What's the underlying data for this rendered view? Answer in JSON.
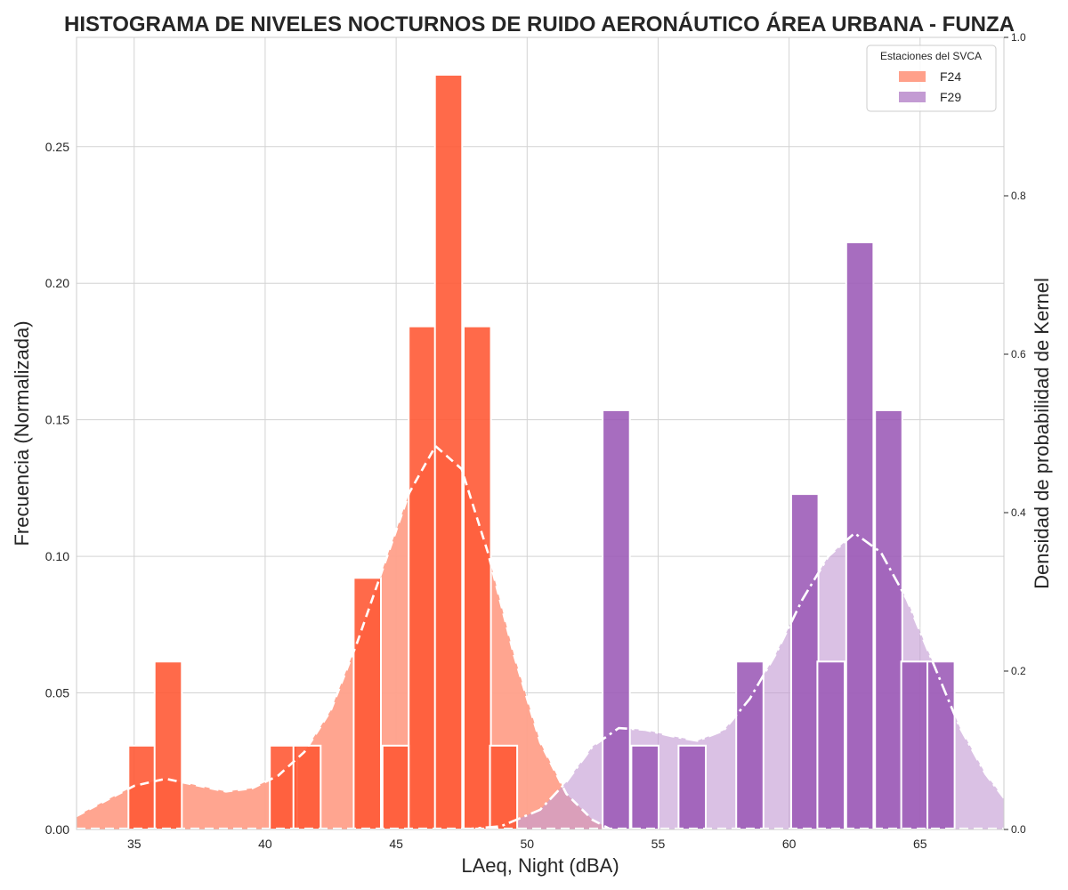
{
  "chart_data": {
    "type": "bar",
    "title": "HISTOGRAMA DE NIVELES NOCTURNOS DE RUIDO AERONÁUTICO ÁREA URBANA - FUNZA",
    "xlabel": "LAeq, Night (dBA)",
    "ylabel": "Frecuencia (Normalizada)",
    "ylabel_right": "Densidad de probabilidad de Kernel",
    "xlim": [
      32.8,
      68.2
    ],
    "ylim": [
      0,
      0.29
    ],
    "ylim_right": [
      0,
      1.0
    ],
    "x_ticks": [
      35,
      40,
      45,
      50,
      55,
      60,
      65
    ],
    "y_ticks": [
      0.0,
      0.05,
      0.1,
      0.15,
      0.2,
      0.25
    ],
    "y_tick_labels": [
      "0.00",
      "0.05",
      "0.10",
      "0.15",
      "0.20",
      "0.25"
    ],
    "y_ticks_right": [
      0.0,
      0.2,
      0.4,
      0.6,
      0.8,
      1.0
    ],
    "y_tick_labels_right": [
      "0.0",
      "0.2",
      "0.4",
      "0.6",
      "0.8",
      "1.0"
    ],
    "grid": true,
    "legend": {
      "title": "Estaciones del SVCA",
      "position": "top-right",
      "entries": [
        "F24",
        "F29"
      ]
    },
    "bin_width": 1.04,
    "series": [
      {
        "name": "F24",
        "color": "#ff5a36",
        "kde_color": "#ffa08a",
        "kde_line_style": "dashed",
        "bins": [
          {
            "x": 35.3,
            "y": 0.0307
          },
          {
            "x": 36.3,
            "y": 0.0615
          },
          {
            "x": 40.7,
            "y": 0.0307
          },
          {
            "x": 41.6,
            "y": 0.0307
          },
          {
            "x": 43.9,
            "y": 0.0921
          },
          {
            "x": 45.0,
            "y": 0.0307
          },
          {
            "x": 46.0,
            "y": 0.1842
          },
          {
            "x": 47.0,
            "y": 0.2763
          },
          {
            "x": 48.1,
            "y": 0.1842
          },
          {
            "x": 49.1,
            "y": 0.0307
          }
        ],
        "kde": [
          {
            "x": 32.8,
            "y": 0.017
          },
          {
            "x": 34.0,
            "y": 0.038
          },
          {
            "x": 35.0,
            "y": 0.055
          },
          {
            "x": 36.2,
            "y": 0.064
          },
          {
            "x": 37.5,
            "y": 0.055
          },
          {
            "x": 38.5,
            "y": 0.048
          },
          {
            "x": 39.5,
            "y": 0.052
          },
          {
            "x": 40.5,
            "y": 0.068
          },
          {
            "x": 41.5,
            "y": 0.098
          },
          {
            "x": 42.5,
            "y": 0.15
          },
          {
            "x": 43.5,
            "y": 0.235
          },
          {
            "x": 44.5,
            "y": 0.33
          },
          {
            "x": 45.5,
            "y": 0.425
          },
          {
            "x": 46.5,
            "y": 0.484
          },
          {
            "x": 47.5,
            "y": 0.455
          },
          {
            "x": 48.5,
            "y": 0.35
          },
          {
            "x": 49.5,
            "y": 0.22
          },
          {
            "x": 50.5,
            "y": 0.11
          },
          {
            "x": 51.5,
            "y": 0.045
          },
          {
            "x": 52.5,
            "y": 0.012
          },
          {
            "x": 53.2,
            "y": 0.0
          }
        ]
      },
      {
        "name": "F29",
        "color": "#9b59b6",
        "kde_color": "#c39bd3",
        "kde_line_style": "dash-dot",
        "bins": [
          {
            "x": 53.4,
            "y": 0.1535
          },
          {
            "x": 54.5,
            "y": 0.0307
          },
          {
            "x": 56.3,
            "y": 0.0307
          },
          {
            "x": 58.5,
            "y": 0.0615
          },
          {
            "x": 60.6,
            "y": 0.1228
          },
          {
            "x": 61.6,
            "y": 0.0615
          },
          {
            "x": 62.7,
            "y": 0.215
          },
          {
            "x": 63.8,
            "y": 0.1535
          },
          {
            "x": 64.8,
            "y": 0.0615
          },
          {
            "x": 65.8,
            "y": 0.0615
          }
        ],
        "kde": [
          {
            "x": 47.5,
            "y": 0.0
          },
          {
            "x": 49.0,
            "y": 0.004
          },
          {
            "x": 50.5,
            "y": 0.025
          },
          {
            "x": 51.5,
            "y": 0.06
          },
          {
            "x": 52.5,
            "y": 0.105
          },
          {
            "x": 53.5,
            "y": 0.128
          },
          {
            "x": 54.5,
            "y": 0.126
          },
          {
            "x": 55.5,
            "y": 0.118
          },
          {
            "x": 56.5,
            "y": 0.112
          },
          {
            "x": 57.5,
            "y": 0.125
          },
          {
            "x": 58.5,
            "y": 0.165
          },
          {
            "x": 59.5,
            "y": 0.222
          },
          {
            "x": 60.5,
            "y": 0.29
          },
          {
            "x": 61.5,
            "y": 0.345
          },
          {
            "x": 62.5,
            "y": 0.374
          },
          {
            "x": 63.5,
            "y": 0.35
          },
          {
            "x": 64.5,
            "y": 0.29
          },
          {
            "x": 65.5,
            "y": 0.21
          },
          {
            "x": 66.5,
            "y": 0.13
          },
          {
            "x": 67.5,
            "y": 0.07
          },
          {
            "x": 68.2,
            "y": 0.04
          }
        ]
      }
    ]
  }
}
